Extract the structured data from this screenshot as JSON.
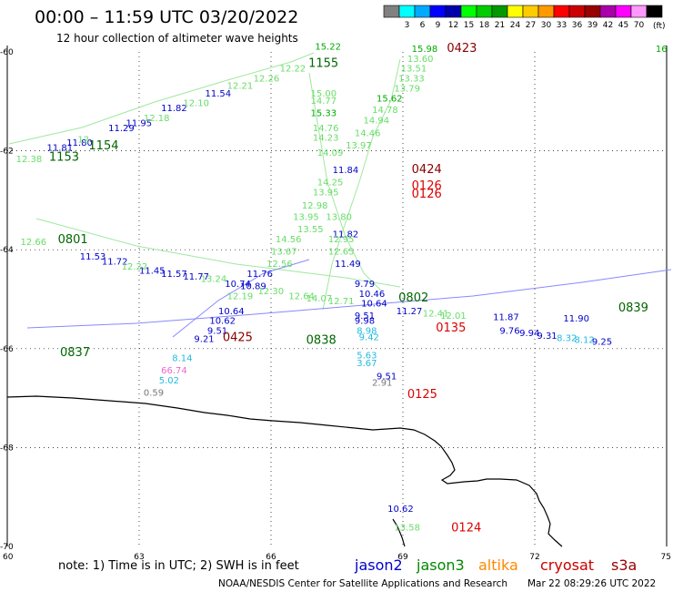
{
  "header": {
    "title": "00:00 – 11:59 UTC 03/20/2022",
    "subtitle": "12 hour collection of altimeter wave heights"
  },
  "legend": {
    "unit": "(ft)",
    "colors": [
      "#808080",
      "#00ffff",
      "#00aaff",
      "#0000ff",
      "#0000aa",
      "#00ff00",
      "#00cc00",
      "#009900",
      "#ffff00",
      "#ffcc00",
      "#ff9900",
      "#ff0000",
      "#cc0000",
      "#990000",
      "#aa00aa",
      "#ff00ff",
      "#ff99ff",
      "#000000"
    ],
    "labels": [
      "3",
      "6",
      "9",
      "12",
      "15",
      "18",
      "21",
      "24",
      "27",
      "30",
      "33",
      "36",
      "39",
      "42",
      "45",
      "70"
    ]
  },
  "axes": {
    "lat_labels": [
      "-60",
      "-62",
      "-64",
      "-66",
      "-68",
      "-70"
    ],
    "lon_labels": [
      "60",
      "63",
      "66",
      "69",
      "72",
      "75"
    ]
  },
  "footer": {
    "note": "note:  1) Time is in UTC;  2) SWH is in feet",
    "satellites": [
      {
        "name": "jason2",
        "color": "#0000cc"
      },
      {
        "name": "jason3",
        "color": "#008800"
      },
      {
        "name": "altika",
        "color": "#ff8800"
      },
      {
        "name": "cryosat",
        "color": "#cc0000"
      },
      {
        "name": "s3a",
        "color": "#990000"
      }
    ],
    "credit": "NOAA/NESDIS Center for Satellite Applications and Research",
    "timestamp": "Mar 22 08:29:26 UTC 2022"
  },
  "palette": {
    "light_green": "#66dd66",
    "green": "#00aa00",
    "dark_green": "#006600",
    "blue": "#0000cc",
    "cyan": "#22bbdd",
    "red": "#dd0000",
    "dark_red": "#880000",
    "pink": "#ee66cc",
    "gray": "#777777"
  },
  "track_labels": [
    {
      "text": "1153",
      "lon": 60.95,
      "lat": -62.2,
      "color": "#006600",
      "big": true
    },
    {
      "text": "1154",
      "lon": 61.85,
      "lat": -61.97,
      "color": "#006600",
      "big": true
    },
    {
      "text": "1155",
      "lon": 66.85,
      "lat": -60.3,
      "color": "#006600",
      "big": true
    },
    {
      "text": "0423",
      "lon": 70.0,
      "lat": -60.0,
      "color": "#880000",
      "big": true
    },
    {
      "text": "0424",
      "lon": 69.2,
      "lat": -62.45,
      "color": "#880000",
      "big": true
    },
    {
      "text": "0126",
      "lon": 69.2,
      "lat": -62.78,
      "color": "#dd0000",
      "big": true
    },
    {
      "text": "0126",
      "lon": 69.2,
      "lat": -62.95,
      "color": "#dd0000",
      "big": true
    },
    {
      "text": "0801",
      "lon": 61.15,
      "lat": -63.87,
      "color": "#006600",
      "big": true
    },
    {
      "text": "0425",
      "lon": 64.9,
      "lat": -65.85,
      "color": "#880000",
      "big": true
    },
    {
      "text": "0135",
      "lon": 69.75,
      "lat": -65.65,
      "color": "#dd0000",
      "big": true
    },
    {
      "text": "0125",
      "lon": 69.1,
      "lat": -67.0,
      "color": "#dd0000",
      "big": true
    },
    {
      "text": "0124",
      "lon": 70.1,
      "lat": -69.7,
      "color": "#dd0000",
      "big": true
    },
    {
      "text": "0802",
      "lon": 68.9,
      "lat": -65.05,
      "color": "#006600",
      "big": true
    },
    {
      "text": "0839",
      "lon": 73.9,
      "lat": -65.25,
      "color": "#006600",
      "big": true
    },
    {
      "text": "0838",
      "lon": 66.8,
      "lat": -65.9,
      "color": "#006600",
      "big": true
    },
    {
      "text": "0837",
      "lon": 61.2,
      "lat": -66.15,
      "color": "#006600",
      "big": true
    }
  ],
  "swh_labels": [
    {
      "text": "12.38",
      "lon": 60.2,
      "lat": -62.23,
      "color": "#66dd66"
    },
    {
      "text": "11.81",
      "lon": 60.9,
      "lat": -62.0,
      "color": "#0000cc"
    },
    {
      "text": "11.80",
      "lon": 61.35,
      "lat": -61.9,
      "color": "#0000cc"
    },
    {
      "text": "12",
      "lon": 61.6,
      "lat": -61.83,
      "color": "#66dd66"
    },
    {
      "text": "11.29",
      "lon": 62.3,
      "lat": -61.6,
      "color": "#0000cc"
    },
    {
      "text": "11.95",
      "lon": 62.7,
      "lat": -61.5,
      "color": "#0000cc"
    },
    {
      "text": "12.18",
      "lon": 63.1,
      "lat": -61.4,
      "color": "#66dd66"
    },
    {
      "text": "11.82",
      "lon": 63.5,
      "lat": -61.2,
      "color": "#0000cc"
    },
    {
      "text": "12.10",
      "lon": 64.0,
      "lat": -61.1,
      "color": "#66dd66"
    },
    {
      "text": "11.54",
      "lon": 64.5,
      "lat": -60.9,
      "color": "#0000cc"
    },
    {
      "text": "12.21",
      "lon": 65.0,
      "lat": -60.75,
      "color": "#66dd66"
    },
    {
      "text": "12.26",
      "lon": 65.6,
      "lat": -60.6,
      "color": "#66dd66"
    },
    {
      "text": "12.22",
      "lon": 66.2,
      "lat": -60.4,
      "color": "#66dd66"
    },
    {
      "text": "15.22",
      "lon": 67.0,
      "lat": -59.95,
      "color": "#00aa00"
    },
    {
      "text": "15.98",
      "lon": 69.2,
      "lat": -60.0,
      "color": "#00aa00"
    },
    {
      "text": "13.60",
      "lon": 69.1,
      "lat": -60.2,
      "color": "#66dd66"
    },
    {
      "text": "13.51",
      "lon": 68.95,
      "lat": -60.4,
      "color": "#66dd66"
    },
    {
      "text": "13.33",
      "lon": 68.9,
      "lat": -60.6,
      "color": "#66dd66"
    },
    {
      "text": "13.79",
      "lon": 68.8,
      "lat": -60.8,
      "color": "#66dd66"
    },
    {
      "text": "15.62",
      "lon": 68.4,
      "lat": -61.0,
      "color": "#00aa00"
    },
    {
      "text": "14.78",
      "lon": 68.3,
      "lat": -61.23,
      "color": "#66dd66"
    },
    {
      "text": "14.94",
      "lon": 68.1,
      "lat": -61.45,
      "color": "#66dd66"
    },
    {
      "text": "14.46",
      "lon": 67.9,
      "lat": -61.7,
      "color": "#66dd66"
    },
    {
      "text": "13.97",
      "lon": 67.7,
      "lat": -61.95,
      "color": "#66dd66"
    },
    {
      "text": "15.00",
      "lon": 66.9,
      "lat": -60.9,
      "color": "#66dd66"
    },
    {
      "text": "14.77",
      "lon": 66.9,
      "lat": -61.05,
      "color": "#66dd66"
    },
    {
      "text": "15.33",
      "lon": 66.9,
      "lat": -61.3,
      "color": "#00aa00"
    },
    {
      "text": "14.76",
      "lon": 66.95,
      "lat": -61.6,
      "color": "#66dd66"
    },
    {
      "text": "14.23",
      "lon": 66.95,
      "lat": -61.8,
      "color": "#66dd66"
    },
    {
      "text": "14.09",
      "lon": 67.05,
      "lat": -62.1,
      "color": "#66dd66"
    },
    {
      "text": "11.84",
      "lon": 67.4,
      "lat": -62.45,
      "color": "#0000cc"
    },
    {
      "text": "14.25",
      "lon": 67.05,
      "lat": -62.7,
      "color": "#66dd66"
    },
    {
      "text": "13.95",
      "lon": 66.95,
      "lat": -62.9,
      "color": "#66dd66"
    },
    {
      "text": "12.98",
      "lon": 66.7,
      "lat": -63.17,
      "color": "#66dd66"
    },
    {
      "text": "13.95",
      "lon": 66.5,
      "lat": -63.4,
      "color": "#66dd66"
    },
    {
      "text": "13.80",
      "lon": 67.25,
      "lat": -63.4,
      "color": "#66dd66"
    },
    {
      "text": "13.55",
      "lon": 66.6,
      "lat": -63.65,
      "color": "#66dd66"
    },
    {
      "text": "11.82",
      "lon": 67.4,
      "lat": -63.75,
      "color": "#0000cc"
    },
    {
      "text": "14.56",
      "lon": 66.1,
      "lat": -63.85,
      "color": "#66dd66"
    },
    {
      "text": "12.95",
      "lon": 67.3,
      "lat": -63.85,
      "color": "#66dd66"
    },
    {
      "text": "13.67",
      "lon": 66.0,
      "lat": -64.1,
      "color": "#66dd66"
    },
    {
      "text": "12.56",
      "lon": 65.9,
      "lat": -64.35,
      "color": "#66dd66"
    },
    {
      "text": "12.65",
      "lon": 67.3,
      "lat": -64.1,
      "color": "#66dd66"
    },
    {
      "text": "11.49",
      "lon": 67.45,
      "lat": -64.35,
      "color": "#0000cc"
    },
    {
      "text": "11.76",
      "lon": 65.45,
      "lat": -64.55,
      "color": "#0000cc"
    },
    {
      "text": "12.66",
      "lon": 60.3,
      "lat": -63.9,
      "color": "#66dd66"
    },
    {
      "text": "11.53",
      "lon": 61.65,
      "lat": -64.2,
      "color": "#0000cc"
    },
    {
      "text": "11.72",
      "lon": 62.15,
      "lat": -64.3,
      "color": "#0000cc"
    },
    {
      "text": "12.22",
      "lon": 62.6,
      "lat": -64.4,
      "color": "#66dd66"
    },
    {
      "text": "11.45",
      "lon": 63.0,
      "lat": -64.48,
      "color": "#0000cc"
    },
    {
      "text": "11.57",
      "lon": 63.5,
      "lat": -64.55,
      "color": "#0000cc"
    },
    {
      "text": "11.77",
      "lon": 64.0,
      "lat": -64.6,
      "color": "#0000cc"
    },
    {
      "text": "13.24",
      "lon": 64.4,
      "lat": -64.65,
      "color": "#66dd66"
    },
    {
      "text": "10.74",
      "lon": 64.95,
      "lat": -64.75,
      "color": "#0000cc"
    },
    {
      "text": "10.89",
      "lon": 65.3,
      "lat": -64.8,
      "color": "#0000cc"
    },
    {
      "text": "12.30",
      "lon": 65.7,
      "lat": -64.9,
      "color": "#66dd66"
    },
    {
      "text": "12.19",
      "lon": 65.0,
      "lat": -65.0,
      "color": "#66dd66"
    },
    {
      "text": "12.64",
      "lon": 66.4,
      "lat": -65.0,
      "color": "#66dd66"
    },
    {
      "text": "14.07",
      "lon": 66.8,
      "lat": -65.05,
      "color": "#66dd66"
    },
    {
      "text": "12.71",
      "lon": 67.3,
      "lat": -65.1,
      "color": "#66dd66"
    },
    {
      "text": "9.79",
      "lon": 67.9,
      "lat": -64.75,
      "color": "#0000cc"
    },
    {
      "text": "10.46",
      "lon": 68.0,
      "lat": -64.95,
      "color": "#0000cc"
    },
    {
      "text": "10.64",
      "lon": 68.05,
      "lat": -65.15,
      "color": "#0000cc"
    },
    {
      "text": "11.27",
      "lon": 68.85,
      "lat": -65.3,
      "color": "#0000cc"
    },
    {
      "text": "12.41",
      "lon": 69.45,
      "lat": -65.35,
      "color": "#66dd66"
    },
    {
      "text": "12.01",
      "lon": 69.85,
      "lat": -65.4,
      "color": "#66dd66"
    },
    {
      "text": "11.87",
      "lon": 71.05,
      "lat": -65.42,
      "color": "#0000cc"
    },
    {
      "text": "10.64",
      "lon": 64.8,
      "lat": -65.3,
      "color": "#0000cc"
    },
    {
      "text": "10.62",
      "lon": 64.6,
      "lat": -65.5,
      "color": "#0000cc"
    },
    {
      "text": "9.51",
      "lon": 64.55,
      "lat": -65.7,
      "color": "#0000cc"
    },
    {
      "text": "9.21",
      "lon": 64.25,
      "lat": -65.87,
      "color": "#0000cc"
    },
    {
      "text": "9.51",
      "lon": 67.9,
      "lat": -65.4,
      "color": "#0000cc"
    },
    {
      "text": "9.98",
      "lon": 67.9,
      "lat": -65.5,
      "color": "#0000cc"
    },
    {
      "text": "8.98",
      "lon": 67.95,
      "lat": -65.7,
      "color": "#22bbdd"
    },
    {
      "text": "9.42",
      "lon": 68.0,
      "lat": -65.83,
      "color": "#22bbdd"
    },
    {
      "text": "5.63",
      "lon": 67.95,
      "lat": -66.2,
      "color": "#22bbdd"
    },
    {
      "text": "3.67",
      "lon": 67.95,
      "lat": -66.35,
      "color": "#22bbdd"
    },
    {
      "text": "9.51",
      "lon": 68.4,
      "lat": -66.62,
      "color": "#0000cc"
    },
    {
      "text": "2.91",
      "lon": 68.3,
      "lat": -66.75,
      "color": "#777777"
    },
    {
      "text": "8.14",
      "lon": 63.75,
      "lat": -66.25,
      "color": "#22bbdd"
    },
    {
      "text": "66.74",
      "lon": 63.5,
      "lat": -66.5,
      "color": "#ee66cc"
    },
    {
      "text": "5.02",
      "lon": 63.45,
      "lat": -66.7,
      "color": "#22bbdd"
    },
    {
      "text": "0.59",
      "lon": 63.1,
      "lat": -66.95,
      "color": "#777777"
    },
    {
      "text": "9.76",
      "lon": 71.2,
      "lat": -65.7,
      "color": "#0000cc"
    },
    {
      "text": "9.94",
      "lon": 71.65,
      "lat": -65.75,
      "color": "#0000cc"
    },
    {
      "text": "9.31",
      "lon": 72.05,
      "lat": -65.8,
      "color": "#0000cc"
    },
    {
      "text": "8.32",
      "lon": 72.5,
      "lat": -65.85,
      "color": "#22bbdd"
    },
    {
      "text": "8.12",
      "lon": 72.9,
      "lat": -65.88,
      "color": "#22bbdd"
    },
    {
      "text": "9.25",
      "lon": 73.3,
      "lat": -65.92,
      "color": "#0000cc"
    },
    {
      "text": "11.90",
      "lon": 72.65,
      "lat": -65.45,
      "color": "#0000cc"
    },
    {
      "text": "16",
      "lon": 74.75,
      "lat": -60.0,
      "color": "#00aa00"
    },
    {
      "text": "10.62",
      "lon": 68.65,
      "lat": -69.3,
      "color": "#0000cc"
    },
    {
      "text": "13.58",
      "lon": 68.8,
      "lat": -69.68,
      "color": "#66dd66"
    }
  ]
}
